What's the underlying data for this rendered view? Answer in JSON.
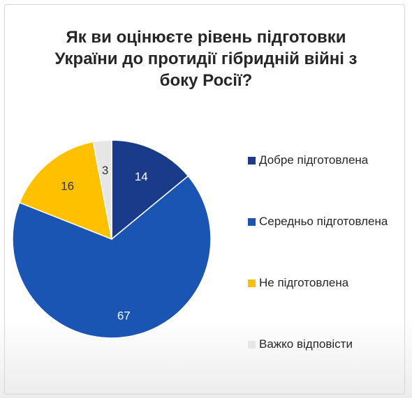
{
  "title_lines": [
    "Як ви оцінюєте рівень підготовки",
    "України до протидії гібридній війні з",
    "боку Росії?"
  ],
  "chart_data": {
    "type": "pie",
    "title": "Як ви оцінюєте рівень підготовки України до протидії гібридній війні з боку Росії?",
    "labels": [
      "Добре підготовлена",
      "Середньо підготовлена",
      "Не підготовлена",
      "Важко відповісти"
    ],
    "values": [
      14,
      67,
      16,
      3
    ],
    "data_labels": [
      "14",
      "67",
      "16",
      "3"
    ],
    "colors": [
      "#1a3b8a",
      "#1b55b4",
      "#ffc000",
      "#e6e6e6"
    ],
    "label_colors": [
      "#ffffff",
      "#ffffff",
      "#333333",
      "#333333"
    ],
    "start": "12 o'clock",
    "direction": "clockwise",
    "legend_position": "right"
  }
}
